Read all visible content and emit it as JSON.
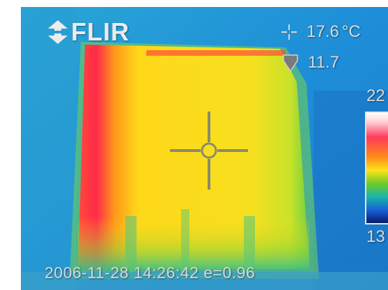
{
  "camera": {
    "brand": "FLIR",
    "icon": "flir-logo-icon"
  },
  "spot_readout": {
    "icon": "crosshair-icon",
    "value": "17.6",
    "unit": "°C"
  },
  "min_readout": {
    "icon": "min-marker-icon",
    "value": "11.7"
  },
  "color_scale": {
    "max_label": "22",
    "min_label": "13",
    "palette": [
      "#ffffff",
      "#ff3a5a",
      "#ff8a1a",
      "#ffe21a",
      "#6ecb2a",
      "#18b7a8",
      "#1a62d8",
      "#0a1a6a"
    ]
  },
  "status": {
    "text": "2006-11-28 14:26:42 e=0.96"
  },
  "image_colors": {
    "background": "#1f8fd8",
    "panel": "#ffd81a",
    "panel_hot": "#ff2a4a",
    "panel_edge": "#7fd23a"
  }
}
